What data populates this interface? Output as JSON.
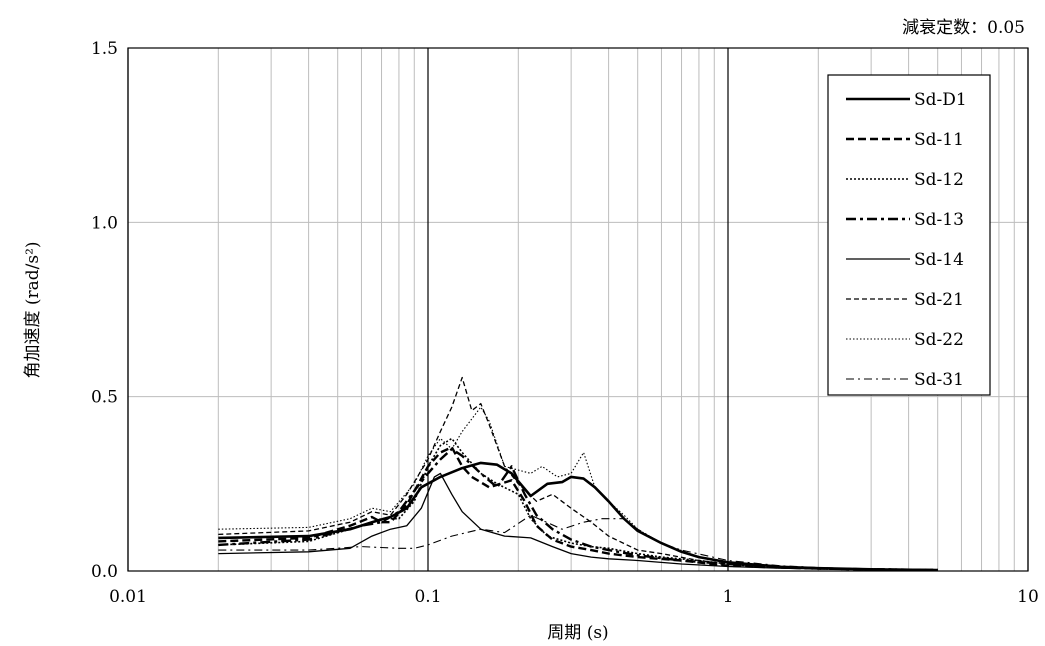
{
  "annotation": "減衰定数：0.05",
  "chart_data": {
    "type": "line",
    "xscale": "log",
    "xlabel": "周期 (s)",
    "ylabel": "角加速度 (rad/s²)",
    "xlim": [
      0.01,
      10
    ],
    "ylim": [
      0,
      1.5
    ],
    "xticks": [
      {
        "value": 0.01,
        "label": "0.01"
      },
      {
        "value": 0.1,
        "label": "0.1"
      },
      {
        "value": 1,
        "label": "1"
      },
      {
        "value": 10,
        "label": "10"
      }
    ],
    "yticks": [
      {
        "value": 0.0,
        "label": "0.0"
      },
      {
        "value": 0.5,
        "label": "0.5"
      },
      {
        "value": 1.0,
        "label": "1.0"
      },
      {
        "value": 1.5,
        "label": "1.5"
      }
    ],
    "grid": true,
    "legend_position": "top-right",
    "series": [
      {
        "name": "Sd-D1",
        "style": "solid-thick",
        "points": [
          [
            0.02,
            0.095
          ],
          [
            0.04,
            0.1
          ],
          [
            0.055,
            0.12
          ],
          [
            0.065,
            0.14
          ],
          [
            0.075,
            0.155
          ],
          [
            0.085,
            0.18
          ],
          [
            0.095,
            0.24
          ],
          [
            0.11,
            0.27
          ],
          [
            0.13,
            0.295
          ],
          [
            0.15,
            0.31
          ],
          [
            0.17,
            0.305
          ],
          [
            0.19,
            0.28
          ],
          [
            0.22,
            0.215
          ],
          [
            0.25,
            0.25
          ],
          [
            0.28,
            0.255
          ],
          [
            0.3,
            0.27
          ],
          [
            0.33,
            0.265
          ],
          [
            0.36,
            0.24
          ],
          [
            0.4,
            0.2
          ],
          [
            0.45,
            0.15
          ],
          [
            0.5,
            0.115
          ],
          [
            0.6,
            0.08
          ],
          [
            0.7,
            0.055
          ],
          [
            0.8,
            0.04
          ],
          [
            1.0,
            0.025
          ],
          [
            1.5,
            0.012
          ],
          [
            2,
            0.008
          ],
          [
            3,
            0.005
          ],
          [
            5,
            0.003
          ]
        ]
      },
      {
        "name": "Sd-11",
        "style": "dash-thick",
        "points": [
          [
            0.02,
            0.085
          ],
          [
            0.04,
            0.095
          ],
          [
            0.055,
            0.13
          ],
          [
            0.065,
            0.155
          ],
          [
            0.07,
            0.14
          ],
          [
            0.075,
            0.14
          ],
          [
            0.085,
            0.19
          ],
          [
            0.1,
            0.3
          ],
          [
            0.11,
            0.34
          ],
          [
            0.12,
            0.355
          ],
          [
            0.13,
            0.3
          ],
          [
            0.14,
            0.27
          ],
          [
            0.16,
            0.24
          ],
          [
            0.19,
            0.26
          ],
          [
            0.21,
            0.2
          ],
          [
            0.23,
            0.13
          ],
          [
            0.26,
            0.09
          ],
          [
            0.3,
            0.07
          ],
          [
            0.35,
            0.06
          ],
          [
            0.4,
            0.05
          ],
          [
            0.5,
            0.04
          ],
          [
            0.7,
            0.03
          ],
          [
            1,
            0.015
          ],
          [
            1.5,
            0.01
          ],
          [
            2,
            0.007
          ],
          [
            3,
            0.005
          ],
          [
            5,
            0.003
          ]
        ]
      },
      {
        "name": "Sd-12",
        "style": "dot",
        "points": [
          [
            0.02,
            0.075
          ],
          [
            0.04,
            0.085
          ],
          [
            0.06,
            0.13
          ],
          [
            0.07,
            0.15
          ],
          [
            0.08,
            0.15
          ],
          [
            0.09,
            0.2
          ],
          [
            0.1,
            0.3
          ],
          [
            0.11,
            0.36
          ],
          [
            0.12,
            0.38
          ],
          [
            0.13,
            0.34
          ],
          [
            0.15,
            0.28
          ],
          [
            0.17,
            0.25
          ],
          [
            0.2,
            0.22
          ],
          [
            0.22,
            0.15
          ],
          [
            0.25,
            0.1
          ],
          [
            0.3,
            0.08
          ],
          [
            0.35,
            0.07
          ],
          [
            0.4,
            0.065
          ],
          [
            0.5,
            0.05
          ],
          [
            0.6,
            0.04
          ],
          [
            0.8,
            0.03
          ],
          [
            1,
            0.02
          ],
          [
            1.5,
            0.01
          ],
          [
            2,
            0.007
          ],
          [
            3,
            0.005
          ],
          [
            5,
            0.003
          ]
        ]
      },
      {
        "name": "Sd-13",
        "style": "dashdot-thick",
        "points": [
          [
            0.02,
            0.075
          ],
          [
            0.04,
            0.09
          ],
          [
            0.06,
            0.13
          ],
          [
            0.07,
            0.14
          ],
          [
            0.08,
            0.17
          ],
          [
            0.09,
            0.23
          ],
          [
            0.1,
            0.28
          ],
          [
            0.11,
            0.32
          ],
          [
            0.12,
            0.35
          ],
          [
            0.13,
            0.33
          ],
          [
            0.15,
            0.28
          ],
          [
            0.17,
            0.24
          ],
          [
            0.19,
            0.3
          ],
          [
            0.21,
            0.22
          ],
          [
            0.23,
            0.16
          ],
          [
            0.26,
            0.12
          ],
          [
            0.3,
            0.09
          ],
          [
            0.35,
            0.07
          ],
          [
            0.4,
            0.06
          ],
          [
            0.5,
            0.045
          ],
          [
            0.7,
            0.03
          ],
          [
            1,
            0.02
          ],
          [
            1.5,
            0.01
          ],
          [
            2,
            0.007
          ],
          [
            3,
            0.005
          ],
          [
            5,
            0.003
          ]
        ]
      },
      {
        "name": "Sd-14",
        "style": "solid-thin",
        "points": [
          [
            0.02,
            0.05
          ],
          [
            0.04,
            0.055
          ],
          [
            0.055,
            0.065
          ],
          [
            0.065,
            0.1
          ],
          [
            0.075,
            0.12
          ],
          [
            0.085,
            0.13
          ],
          [
            0.095,
            0.18
          ],
          [
            0.105,
            0.27
          ],
          [
            0.11,
            0.28
          ],
          [
            0.12,
            0.22
          ],
          [
            0.13,
            0.17
          ],
          [
            0.15,
            0.12
          ],
          [
            0.18,
            0.1
          ],
          [
            0.22,
            0.095
          ],
          [
            0.26,
            0.07
          ],
          [
            0.3,
            0.05
          ],
          [
            0.35,
            0.04
          ],
          [
            0.4,
            0.035
          ],
          [
            0.5,
            0.03
          ],
          [
            0.7,
            0.02
          ],
          [
            1,
            0.013
          ],
          [
            1.5,
            0.008
          ],
          [
            2,
            0.006
          ],
          [
            3,
            0.004
          ],
          [
            5,
            0.003
          ]
        ]
      },
      {
        "name": "Sd-21",
        "style": "dash-thin",
        "points": [
          [
            0.02,
            0.105
          ],
          [
            0.04,
            0.115
          ],
          [
            0.055,
            0.14
          ],
          [
            0.065,
            0.17
          ],
          [
            0.075,
            0.16
          ],
          [
            0.085,
            0.22
          ],
          [
            0.1,
            0.32
          ],
          [
            0.11,
            0.4
          ],
          [
            0.12,
            0.47
          ],
          [
            0.13,
            0.555
          ],
          [
            0.14,
            0.46
          ],
          [
            0.15,
            0.48
          ],
          [
            0.16,
            0.42
          ],
          [
            0.18,
            0.3
          ],
          [
            0.2,
            0.25
          ],
          [
            0.23,
            0.2
          ],
          [
            0.26,
            0.22
          ],
          [
            0.3,
            0.18
          ],
          [
            0.35,
            0.14
          ],
          [
            0.4,
            0.1
          ],
          [
            0.5,
            0.06
          ],
          [
            0.6,
            0.05
          ],
          [
            0.8,
            0.03
          ],
          [
            1,
            0.02
          ],
          [
            1.5,
            0.01
          ],
          [
            2,
            0.007
          ],
          [
            3,
            0.005
          ],
          [
            5,
            0.003
          ]
        ]
      },
      {
        "name": "Sd-22",
        "style": "dot-thin",
        "points": [
          [
            0.02,
            0.12
          ],
          [
            0.04,
            0.125
          ],
          [
            0.055,
            0.15
          ],
          [
            0.065,
            0.18
          ],
          [
            0.075,
            0.17
          ],
          [
            0.09,
            0.25
          ],
          [
            0.1,
            0.33
          ],
          [
            0.11,
            0.38
          ],
          [
            0.12,
            0.35
          ],
          [
            0.13,
            0.4
          ],
          [
            0.15,
            0.47
          ],
          [
            0.16,
            0.43
          ],
          [
            0.18,
            0.3
          ],
          [
            0.22,
            0.28
          ],
          [
            0.24,
            0.3
          ],
          [
            0.27,
            0.27
          ],
          [
            0.3,
            0.28
          ],
          [
            0.33,
            0.34
          ],
          [
            0.36,
            0.24
          ],
          [
            0.4,
            0.2
          ],
          [
            0.45,
            0.16
          ],
          [
            0.5,
            0.12
          ],
          [
            0.6,
            0.08
          ],
          [
            0.8,
            0.04
          ],
          [
            1,
            0.025
          ],
          [
            1.5,
            0.012
          ],
          [
            2,
            0.008
          ],
          [
            3,
            0.005
          ],
          [
            5,
            0.003
          ]
        ]
      },
      {
        "name": "Sd-31",
        "style": "dashdot-thin",
        "points": [
          [
            0.02,
            0.06
          ],
          [
            0.04,
            0.06
          ],
          [
            0.06,
            0.07
          ],
          [
            0.08,
            0.065
          ],
          [
            0.09,
            0.065
          ],
          [
            0.1,
            0.075
          ],
          [
            0.12,
            0.1
          ],
          [
            0.15,
            0.12
          ],
          [
            0.18,
            0.11
          ],
          [
            0.22,
            0.16
          ],
          [
            0.28,
            0.12
          ],
          [
            0.33,
            0.14
          ],
          [
            0.38,
            0.15
          ],
          [
            0.45,
            0.15
          ],
          [
            0.5,
            0.12
          ],
          [
            0.6,
            0.08
          ],
          [
            0.7,
            0.06
          ],
          [
            1,
            0.03
          ],
          [
            1.5,
            0.015
          ],
          [
            2,
            0.01
          ],
          [
            3,
            0.006
          ],
          [
            5,
            0.003
          ]
        ]
      }
    ]
  }
}
